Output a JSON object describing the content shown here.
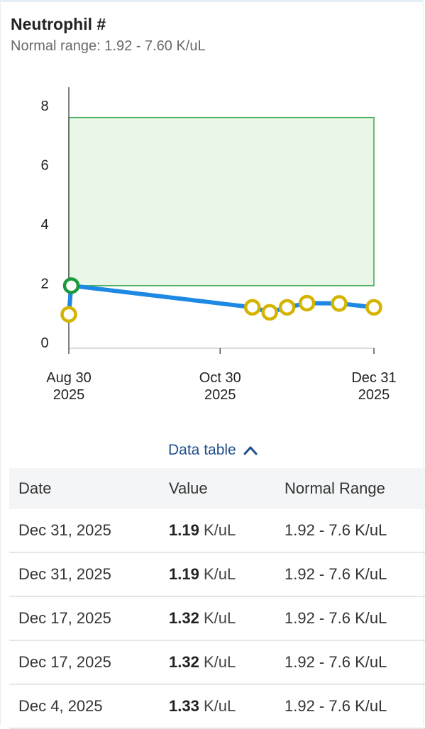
{
  "header": {
    "title": "Neutrophil #",
    "subtitle": "Normal range: 1.92 - 7.60 K/uL"
  },
  "chart_data": {
    "type": "line",
    "title": "",
    "xlabel": "",
    "ylabel": "",
    "ylim": [
      0,
      8
    ],
    "yticks": [
      "0",
      "2",
      "4",
      "6",
      "8"
    ],
    "xticks": [
      {
        "date": "2025-08-30",
        "line1": "Aug 30",
        "line2": "2025"
      },
      {
        "date": "2025-10-30",
        "line1": "Oct 30",
        "line2": "2025"
      },
      {
        "date": "2025-12-31",
        "line1": "Dec 31",
        "line2": "2025"
      }
    ],
    "normal_range": {
      "low": 1.92,
      "high": 7.6
    },
    "series": [
      {
        "points": [
          {
            "date": "2025-08-30",
            "value": 0.95
          },
          {
            "date": "2025-08-31",
            "value": 1.92
          },
          {
            "date": "2025-11-12",
            "value": 1.19
          },
          {
            "date": "2025-11-19",
            "value": 1.02
          },
          {
            "date": "2025-11-26",
            "value": 1.19
          },
          {
            "date": "2025-12-04",
            "value": 1.33
          },
          {
            "date": "2025-12-17",
            "value": 1.32
          },
          {
            "date": "2025-12-31",
            "value": 1.19
          }
        ]
      }
    ],
    "colors": {
      "line": "#1e88e5",
      "marker_low": "#d4b400",
      "marker_normal": "#1a9a3a",
      "range_fill": "#e8f7e8",
      "range_stroke": "#3fa84c"
    }
  },
  "toggle": {
    "label": "Data table",
    "icon": "chevron-up-icon"
  },
  "table": {
    "columns": [
      "Date",
      "Value",
      "Normal Range"
    ],
    "rows": [
      {
        "date": "Dec 31, 2025",
        "value": "1.19",
        "unit": "K/uL",
        "range": "1.92 - 7.6 K/uL"
      },
      {
        "date": "Dec 31, 2025",
        "value": "1.19",
        "unit": "K/uL",
        "range": "1.92 - 7.6 K/uL"
      },
      {
        "date": "Dec 17, 2025",
        "value": "1.32",
        "unit": "K/uL",
        "range": "1.92 - 7.6 K/uL"
      },
      {
        "date": "Dec 17, 2025",
        "value": "1.32",
        "unit": "K/uL",
        "range": "1.92 - 7.6 K/uL"
      },
      {
        "date": "Dec 4, 2025",
        "value": "1.33",
        "unit": "K/uL",
        "range": "1.92 - 7.6 K/uL"
      }
    ]
  }
}
